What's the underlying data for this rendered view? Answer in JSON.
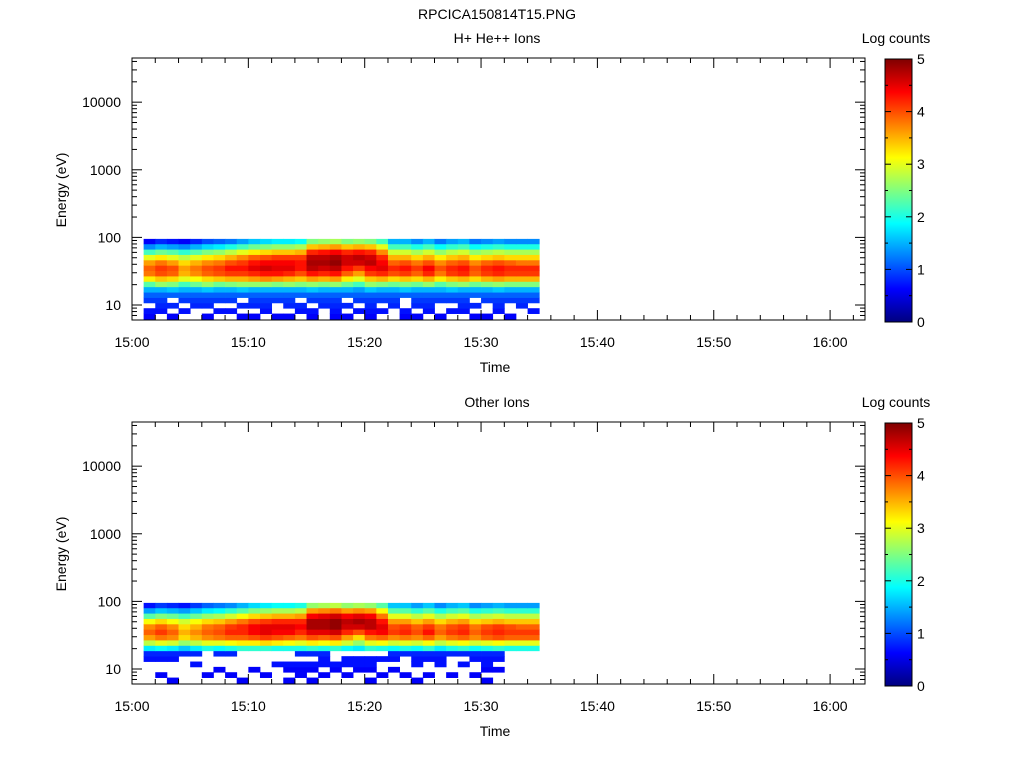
{
  "figure": {
    "title": "RPCICA150814T15.PNG"
  },
  "colorbar": {
    "label": "Log counts",
    "ticks": [
      0,
      1,
      2,
      3,
      4,
      5
    ],
    "colormap": [
      "#00007f",
      "#0000ff",
      "#0080ff",
      "#00ffff",
      "#80ff80",
      "#ffff00",
      "#ff8000",
      "#ff0000",
      "#7f0000"
    ]
  },
  "chart_data": [
    {
      "type": "heatmap",
      "title": "H+ He++ Ions",
      "xlabel": "Time",
      "ylabel": "Energy (eV)",
      "y_scale": "log",
      "x_ticks": [
        "15:00",
        "15:10",
        "15:20",
        "15:30",
        "15:40",
        "15:50",
        "16:00"
      ],
      "y_ticks": [
        "10",
        "100",
        "1000",
        "10000"
      ],
      "xlim": [
        "15:00",
        "16:03"
      ],
      "ylim": [
        6,
        45000
      ],
      "data_time_range": [
        "15:01",
        "15:35"
      ],
      "data_energy_range_eV": [
        6,
        95
      ],
      "time_bins": [
        "15:01",
        "15:02",
        "15:03",
        "15:04",
        "15:05",
        "15:06",
        "15:07",
        "15:08",
        "15:09",
        "15:10",
        "15:11",
        "15:12",
        "15:13",
        "15:14",
        "15:15",
        "15:16",
        "15:17",
        "15:18",
        "15:19",
        "15:20",
        "15:21",
        "15:22",
        "15:23",
        "15:24",
        "15:25",
        "15:26",
        "15:27",
        "15:28",
        "15:29",
        "15:30",
        "15:31",
        "15:32",
        "15:33",
        "15:34"
      ],
      "energy_bins_eV": [
        6.8,
        8.2,
        9.8,
        11.8,
        14.1,
        17,
        20.4,
        24.5,
        29.4,
        35.3,
        42.4,
        50.9,
        61.1,
        73.3,
        88
      ],
      "log_counts_by_energy": [
        [
          0.6,
          0,
          0.6,
          0,
          0,
          0.6,
          0,
          0,
          0.6,
          0.6,
          0,
          0.6,
          0.6,
          0,
          0.6,
          0,
          0.6,
          0.6,
          0,
          0.6,
          0,
          0,
          0.6,
          0.6,
          0,
          0.6,
          0,
          0,
          0.6,
          0.6,
          0,
          0.6,
          0,
          0
        ],
        [
          0.7,
          0.7,
          0,
          0.7,
          0,
          0,
          0.7,
          0.7,
          0,
          0,
          0.7,
          0,
          0,
          0.7,
          0.7,
          0,
          0.7,
          0,
          0.7,
          0.7,
          0.7,
          0,
          0.7,
          0,
          0.7,
          0,
          0.7,
          0.7,
          0,
          0,
          0.7,
          0,
          0,
          0.7
        ],
        [
          0,
          0.8,
          0.8,
          0,
          0.8,
          0.8,
          0,
          0,
          0.8,
          0.8,
          0.8,
          0,
          0.8,
          0.8,
          0,
          0.8,
          0.8,
          0.8,
          0,
          0.8,
          0,
          0.8,
          0,
          0.8,
          0.8,
          0,
          0,
          0.8,
          0.8,
          0,
          0.8,
          0,
          0.8,
          0
        ],
        [
          0.9,
          0.9,
          0,
          0.9,
          0.9,
          0.9,
          0.9,
          0.9,
          0,
          0.9,
          0.9,
          0.9,
          0.9,
          0,
          0.9,
          0.9,
          0.9,
          0,
          0.9,
          0.9,
          0.9,
          0.9,
          0,
          0.9,
          0.9,
          0.9,
          0.9,
          0.9,
          0,
          0.9,
          0.9,
          0.9,
          0.9,
          0.9
        ],
        [
          1.1,
          1.1,
          1.1,
          1.1,
          1.1,
          1.1,
          1.1,
          1.1,
          1.1,
          1.1,
          1.1,
          1.1,
          1.1,
          1.1,
          1.1,
          1.1,
          1.1,
          1.1,
          1.1,
          1.1,
          1.1,
          1.1,
          1.1,
          1.1,
          1.1,
          1.1,
          1.1,
          1.1,
          1.1,
          1.1,
          1.1,
          1.1,
          1.1,
          1.1
        ],
        [
          1.5,
          1.5,
          1.6,
          1.5,
          1.5,
          1.6,
          1.5,
          1.5,
          1.6,
          1.5,
          1.5,
          1.5,
          1.5,
          1.5,
          1.6,
          1.5,
          1.5,
          1.5,
          1.4,
          1.6,
          1.5,
          1.5,
          1.6,
          1.5,
          1.5,
          1.5,
          1.6,
          1.5,
          1.5,
          1.5,
          1.6,
          1.5,
          1.5,
          1.5
        ],
        [
          2.3,
          2.6,
          2.5,
          2.2,
          2.4,
          2.6,
          2.4,
          2.5,
          2.6,
          2.6,
          2.6,
          2.5,
          2.6,
          2.5,
          2.6,
          2.5,
          2.6,
          2.4,
          2.2,
          2.6,
          2.5,
          2.4,
          2.5,
          2.4,
          2.6,
          2.3,
          2.5,
          2.6,
          2.4,
          2.5,
          2.6,
          2.5,
          2.5,
          2.5
        ],
        [
          3.2,
          3.4,
          3.3,
          3,
          3.1,
          3.3,
          3.4,
          3.5,
          3.5,
          3.6,
          3.7,
          3.6,
          3.5,
          3.4,
          3.6,
          3.5,
          3.6,
          3.2,
          3,
          3.4,
          3.5,
          3.3,
          3.4,
          3.3,
          3.5,
          3.2,
          3.4,
          3.5,
          3.3,
          3.5,
          3.6,
          3.5,
          3.5,
          3.5
        ],
        [
          3.8,
          4.0,
          3.9,
          3.5,
          3.7,
          3.9,
          4.0,
          4.1,
          4.1,
          4.2,
          4.3,
          4.3,
          4.2,
          4.0,
          4.3,
          4.2,
          4.3,
          3.9,
          3.6,
          4.1,
          4.2,
          4.0,
          4.1,
          3.9,
          4.2,
          3.8,
          4.1,
          4.2,
          3.9,
          4.1,
          4.2,
          4.1,
          4.1,
          4.1
        ],
        [
          3.9,
          4.1,
          4.0,
          3.6,
          3.8,
          4.0,
          4.1,
          4.3,
          4.3,
          4.5,
          4.6,
          4.5,
          4.5,
          4.3,
          4.7,
          4.6,
          4.7,
          4.3,
          4.1,
          4.4,
          4.5,
          4.2,
          4.3,
          4.1,
          4.4,
          4.0,
          4.2,
          4.3,
          4.0,
          4.2,
          4.3,
          4.2,
          4.2,
          4.2
        ],
        [
          3.6,
          3.8,
          3.6,
          3.3,
          3.5,
          3.7,
          3.8,
          4.0,
          4.1,
          4.3,
          4.4,
          4.4,
          4.4,
          4.3,
          4.8,
          4.8,
          4.9,
          4.6,
          4.6,
          4.7,
          4.4,
          3.9,
          4.0,
          3.8,
          4.0,
          3.7,
          3.9,
          4.0,
          3.7,
          3.9,
          4.0,
          3.9,
          3.8,
          3.8
        ],
        [
          3.0,
          3.2,
          3.0,
          2.8,
          3.0,
          3.2,
          3.3,
          3.5,
          3.7,
          3.9,
          4.0,
          4.1,
          4.1,
          4.1,
          4.7,
          4.7,
          4.8,
          4.6,
          4.7,
          4.6,
          4.2,
          3.5,
          3.5,
          3.3,
          3.5,
          3.2,
          3.4,
          3.5,
          3.2,
          3.3,
          3.4,
          3.3,
          3.3,
          3.3
        ],
        [
          2.2,
          2.4,
          2.3,
          2.1,
          2.3,
          2.5,
          2.6,
          2.8,
          3.0,
          3.2,
          3.3,
          3.4,
          3.4,
          3.5,
          4.2,
          4.3,
          4.4,
          4.2,
          4.3,
          4.2,
          3.7,
          2.9,
          2.9,
          2.7,
          2.9,
          2.6,
          2.8,
          2.9,
          2.6,
          2.7,
          2.8,
          2.7,
          2.7,
          2.7
        ],
        [
          1.3,
          1.5,
          1.4,
          1.3,
          1.5,
          1.7,
          1.8,
          2.0,
          2.2,
          2.4,
          2.5,
          2.6,
          2.6,
          2.7,
          3.4,
          3.5,
          3.6,
          3.4,
          3.5,
          3.4,
          3.0,
          2.2,
          2.2,
          2.0,
          2.2,
          1.9,
          2.1,
          2.2,
          1.9,
          2.0,
          2.1,
          2.0,
          2.0,
          2.0
        ],
        [
          0.6,
          0.8,
          0.7,
          0.6,
          0.8,
          1.0,
          1.1,
          1.2,
          1.4,
          1.6,
          1.7,
          1.8,
          1.8,
          1.9,
          2.5,
          2.6,
          2.7,
          2.5,
          2.6,
          2.5,
          2.2,
          1.5,
          1.5,
          1.3,
          1.5,
          1.2,
          1.4,
          1.5,
          1.2,
          1.3,
          1.4,
          1.3,
          1.3,
          1.3
        ]
      ]
    },
    {
      "type": "heatmap",
      "title": "Other Ions",
      "xlabel": "Time",
      "ylabel": "Energy (eV)",
      "y_scale": "log",
      "x_ticks": [
        "15:00",
        "15:10",
        "15:20",
        "15:30",
        "15:40",
        "15:50",
        "16:00"
      ],
      "y_ticks": [
        "10",
        "100",
        "1000",
        "10000"
      ],
      "xlim": [
        "15:00",
        "16:03"
      ],
      "ylim": [
        6,
        45000
      ],
      "data_time_range": [
        "15:01",
        "15:35"
      ],
      "data_energy_range_eV": [
        6,
        95
      ],
      "time_bins": [
        "15:01",
        "15:02",
        "15:03",
        "15:04",
        "15:05",
        "15:06",
        "15:07",
        "15:08",
        "15:09",
        "15:10",
        "15:11",
        "15:12",
        "15:13",
        "15:14",
        "15:15",
        "15:16",
        "15:17",
        "15:18",
        "15:19",
        "15:20",
        "15:21",
        "15:22",
        "15:23",
        "15:24",
        "15:25",
        "15:26",
        "15:27",
        "15:28",
        "15:29",
        "15:30",
        "15:31",
        "15:32",
        "15:33",
        "15:34"
      ],
      "energy_bins_eV": [
        6.8,
        8.2,
        9.8,
        11.8,
        14.1,
        17,
        20.4,
        24.5,
        29.4,
        35.3,
        42.4,
        50.9,
        61.1,
        73.3,
        88
      ],
      "log_counts_by_energy": [
        [
          0,
          0,
          0.6,
          0,
          0,
          0,
          0,
          0,
          0.6,
          0,
          0,
          0,
          0.6,
          0,
          0.6,
          0,
          0,
          0,
          0,
          0.6,
          0,
          0,
          0,
          0.6,
          0,
          0,
          0,
          0,
          0,
          0.6,
          0,
          0,
          0,
          0
        ],
        [
          0,
          0.6,
          0,
          0,
          0,
          0.6,
          0,
          0.6,
          0,
          0,
          0.6,
          0,
          0,
          0.6,
          0,
          0.6,
          0,
          0.6,
          0,
          0,
          0.6,
          0,
          0.6,
          0,
          0.6,
          0,
          0.6,
          0,
          0.6,
          0,
          0,
          0,
          0,
          0
        ],
        [
          0,
          0,
          0,
          0,
          0,
          0,
          0.6,
          0,
          0,
          0.6,
          0,
          0,
          0.6,
          0.6,
          0.6,
          0,
          0.6,
          0,
          0.6,
          0.6,
          0,
          0.6,
          0,
          0,
          0,
          0,
          0,
          0,
          0,
          0.6,
          0.6,
          0,
          0,
          0
        ],
        [
          0,
          0,
          0,
          0,
          0.7,
          0,
          0,
          0,
          0,
          0,
          0,
          0.7,
          0.7,
          0.7,
          0.7,
          0.7,
          0.7,
          0.7,
          0.7,
          0.7,
          0,
          0,
          0,
          0.7,
          0,
          0.7,
          0,
          0.7,
          0,
          0.7,
          0,
          0,
          0,
          0
        ],
        [
          0.7,
          0.7,
          0.7,
          0,
          0,
          0,
          0,
          0,
          0,
          0,
          0,
          0,
          0,
          0,
          0,
          0.7,
          0,
          0.7,
          0.7,
          0.7,
          0.7,
          0.7,
          0,
          0.7,
          0.7,
          0.7,
          0,
          0,
          0.7,
          0.7,
          0.7,
          0,
          0,
          0
        ],
        [
          0.8,
          0.8,
          0.8,
          0.8,
          0.8,
          0,
          0.8,
          0.8,
          0,
          0,
          0,
          0,
          0,
          0.8,
          0.8,
          0.8,
          0,
          0,
          0,
          0,
          0,
          0.8,
          0.8,
          0.8,
          0.8,
          0.8,
          0.8,
          0.8,
          0.8,
          0.8,
          0.8,
          0,
          0,
          0
        ],
        [
          1.8,
          1.9,
          1.8,
          1.6,
          1.8,
          2.0,
          1.9,
          2.0,
          2.1,
          2.1,
          2.1,
          2.0,
          2.0,
          2.0,
          2.1,
          2.0,
          2.1,
          1.9,
          1.8,
          2.1,
          2.0,
          1.9,
          2.0,
          1.9,
          2.1,
          1.8,
          2.0,
          2.1,
          1.9,
          2.0,
          2.1,
          2.0,
          2.0,
          2.0
        ],
        [
          2.8,
          3.0,
          2.9,
          2.6,
          2.8,
          3.0,
          3.0,
          3.1,
          3.2,
          3.2,
          3.3,
          3.2,
          3.1,
          3.0,
          3.2,
          3.1,
          3.2,
          2.9,
          2.6,
          3.0,
          3.1,
          2.9,
          3.0,
          2.9,
          3.1,
          2.8,
          3.0,
          3.1,
          2.9,
          3.0,
          3.1,
          3.0,
          3.0,
          3.0
        ],
        [
          3.6,
          3.8,
          3.7,
          3.3,
          3.5,
          3.7,
          3.8,
          3.9,
          3.9,
          4.0,
          4.1,
          4.0,
          3.9,
          3.8,
          4.0,
          3.9,
          4.0,
          3.6,
          3.3,
          3.8,
          3.9,
          3.7,
          3.8,
          3.7,
          3.9,
          3.6,
          3.8,
          3.9,
          3.7,
          3.9,
          4.0,
          3.9,
          3.9,
          3.9
        ],
        [
          3.9,
          4.1,
          3.9,
          3.5,
          3.7,
          3.9,
          4.0,
          4.2,
          4.2,
          4.4,
          4.5,
          4.4,
          4.4,
          4.2,
          4.5,
          4.5,
          4.6,
          4.2,
          4.0,
          4.3,
          4.4,
          4.1,
          4.2,
          4.0,
          4.3,
          3.9,
          4.1,
          4.2,
          3.9,
          4.1,
          4.2,
          4.1,
          4.1,
          4.1
        ],
        [
          3.7,
          3.9,
          3.7,
          3.3,
          3.5,
          3.8,
          3.9,
          4.1,
          4.2,
          4.4,
          4.5,
          4.5,
          4.5,
          4.4,
          4.8,
          4.8,
          4.9,
          4.6,
          4.6,
          4.7,
          4.5,
          4.0,
          4.1,
          3.9,
          4.1,
          3.8,
          4.0,
          4.1,
          3.8,
          4.0,
          4.1,
          4.0,
          3.9,
          3.9
        ],
        [
          3.1,
          3.3,
          3.1,
          2.9,
          3.1,
          3.3,
          3.4,
          3.6,
          3.8,
          4.0,
          4.1,
          4.2,
          4.2,
          4.2,
          4.8,
          4.8,
          4.9,
          4.7,
          4.8,
          4.7,
          4.3,
          3.6,
          3.6,
          3.4,
          3.6,
          3.3,
          3.5,
          3.6,
          3.3,
          3.4,
          3.5,
          3.4,
          3.4,
          3.4
        ],
        [
          2.3,
          2.5,
          2.4,
          2.2,
          2.4,
          2.6,
          2.7,
          2.9,
          3.1,
          3.3,
          3.4,
          3.5,
          3.5,
          3.6,
          4.4,
          4.5,
          4.6,
          4.4,
          4.5,
          4.4,
          3.8,
          3.0,
          3.0,
          2.8,
          3.0,
          2.7,
          2.9,
          3.0,
          2.7,
          2.8,
          2.9,
          2.8,
          2.8,
          2.8
        ],
        [
          1.4,
          1.6,
          1.5,
          1.4,
          1.6,
          1.8,
          1.9,
          2.1,
          2.3,
          2.5,
          2.6,
          2.7,
          2.7,
          2.8,
          3.6,
          3.7,
          3.8,
          3.6,
          3.7,
          3.6,
          3.1,
          2.3,
          2.3,
          2.1,
          2.3,
          2.0,
          2.2,
          2.3,
          2.0,
          2.1,
          2.2,
          2.1,
          2.1,
          2.1
        ],
        [
          0.7,
          0.9,
          0.8,
          0.7,
          0.9,
          1.1,
          1.2,
          1.3,
          1.5,
          1.7,
          1.8,
          1.9,
          1.9,
          2.0,
          2.6,
          2.7,
          2.8,
          2.6,
          2.7,
          2.6,
          2.3,
          1.6,
          1.6,
          1.4,
          1.6,
          1.3,
          1.5,
          1.6,
          1.3,
          1.4,
          1.5,
          1.4,
          1.4,
          1.4
        ]
      ]
    }
  ]
}
